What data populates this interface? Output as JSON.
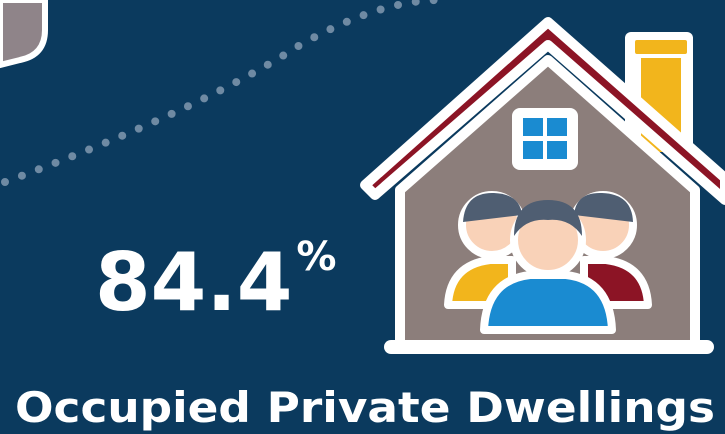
{
  "stat": {
    "value": 84.4,
    "unit": "%"
  },
  "label": "Occupied Private Dwellings"
}
